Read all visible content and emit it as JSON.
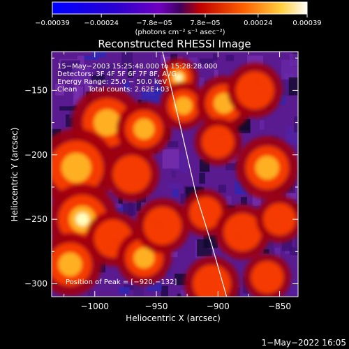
{
  "chart_data": {
    "type": "heatmap",
    "title": "Reconstructed RHESSI Image",
    "xlabel": "Heliocentric X (arcsec)",
    "ylabel": "Heliocentric Y (arcsec)",
    "xlim": [
      -1035,
      -835
    ],
    "ylim": [
      -310,
      -120
    ],
    "x_ticks": [
      -1000,
      -950,
      -900,
      -850
    ],
    "x_tick_labels": [
      "−1000",
      "−950",
      "−900",
      "−850"
    ],
    "y_ticks": [
      -150,
      -200,
      -250,
      -300
    ],
    "y_tick_labels": [
      "−150",
      "−200",
      "−250",
      "−300"
    ],
    "colorbar": {
      "range": [
        -0.00039,
        0.00039
      ],
      "ticks": [
        -0.00039,
        -0.00024,
        -7.8e-05,
        7.8e-05,
        0.00024,
        0.00039
      ],
      "tick_labels": [
        "−0.00039",
        "−0.00024",
        "−7.8e−05",
        "7.8e−05",
        "0.00024",
        "0.00039"
      ],
      "units": "(photons cm⁻² s⁻¹ asec⁻²)"
    },
    "info_lines": [
      "15−May−2003 15:25:48.000 to 15:28:28.000",
      "Detectors: 3F 4F 5F 6F 7F 8F, AVG",
      "Energy Range: 25.0 − 50.0 keV",
      "Clean     Total counts: 2.62E+03"
    ],
    "peak_label": "Position of Peak = [−920,−132]",
    "peak": [
      -920,
      -132
    ],
    "limb_curve": [
      [
        -945,
        -120
      ],
      [
        -930,
        -180
      ],
      [
        -918,
        -230
      ],
      [
        -905,
        -270
      ],
      [
        -893,
        -310
      ]
    ],
    "hot_spots": [
      {
        "x": -932,
        "y": -140,
        "v": 0.95,
        "r": 10
      },
      {
        "x": -928,
        "y": -162,
        "v": 0.8,
        "r": 12
      },
      {
        "x": -990,
        "y": -175,
        "v": 0.7,
        "r": 18
      },
      {
        "x": -960,
        "y": -180,
        "v": 0.65,
        "r": 14
      },
      {
        "x": -895,
        "y": -160,
        "v": 0.75,
        "r": 14
      },
      {
        "x": -870,
        "y": -150,
        "v": 0.6,
        "r": 14
      },
      {
        "x": -900,
        "y": -190,
        "v": 0.55,
        "r": 12
      },
      {
        "x": -860,
        "y": -210,
        "v": 0.7,
        "r": 16
      },
      {
        "x": -1015,
        "y": -210,
        "v": 0.75,
        "r": 20
      },
      {
        "x": -970,
        "y": -215,
        "v": 0.5,
        "r": 14
      },
      {
        "x": -1010,
        "y": -250,
        "v": 0.85,
        "r": 18
      },
      {
        "x": -985,
        "y": -265,
        "v": 0.6,
        "r": 14
      },
      {
        "x": -1020,
        "y": -285,
        "v": 0.8,
        "r": 16
      },
      {
        "x": -960,
        "y": -280,
        "v": 0.75,
        "r": 14
      },
      {
        "x": -945,
        "y": -255,
        "v": 0.55,
        "r": 14
      },
      {
        "x": -910,
        "y": -245,
        "v": 0.55,
        "r": 12
      },
      {
        "x": -880,
        "y": -260,
        "v": 0.6,
        "r": 14
      },
      {
        "x": -850,
        "y": -250,
        "v": 0.5,
        "r": 12
      },
      {
        "x": -905,
        "y": -300,
        "v": 0.55,
        "r": 14
      },
      {
        "x": -860,
        "y": -295,
        "v": 0.5,
        "r": 12
      }
    ],
    "grid": false
  },
  "footer": {
    "date": "1−May−2022 16:05"
  }
}
